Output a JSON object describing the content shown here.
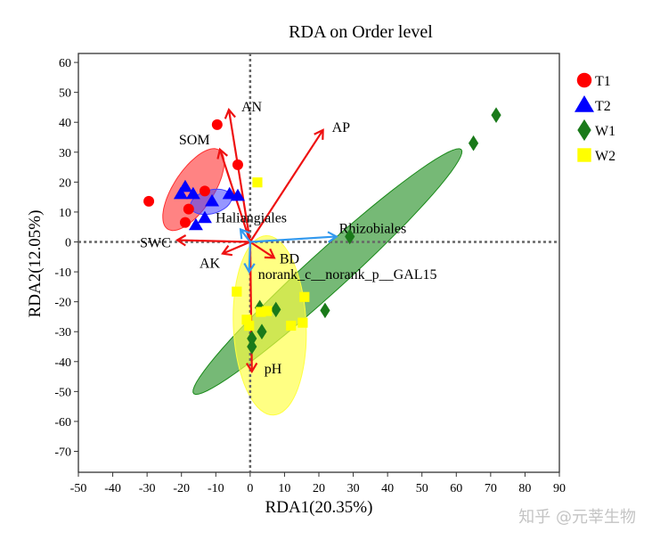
{
  "chart_data": {
    "type": "scatter",
    "title": "RDA on Order level",
    "xlabel": "RDA1(20.35%)",
    "ylabel": "RDA2(12.05%)",
    "xlim": [
      -50,
      90
    ],
    "ylim": [
      -77,
      63
    ],
    "xticks": [
      -50,
      -40,
      -30,
      -20,
      -10,
      0,
      10,
      20,
      30,
      40,
      50,
      60,
      70,
      80,
      90
    ],
    "yticks": [
      60,
      50,
      40,
      30,
      20,
      10,
      0,
      -10,
      -20,
      -30,
      -40,
      -50,
      -60,
      -70
    ],
    "grid": false,
    "legend_position": "right",
    "series": [
      {
        "name": "T1",
        "marker": "circle",
        "color": "#ff0000",
        "points": [
          [
            -9.6,
            39.2
          ],
          [
            -3.6,
            25.8
          ],
          [
            -29.5,
            13.6
          ],
          [
            -13.2,
            17
          ],
          [
            -17.9,
            11
          ],
          [
            -18.9,
            6.5
          ]
        ]
      },
      {
        "name": "T2",
        "marker": "triangle",
        "color": "#0000ff",
        "points": [
          [
            -18.9,
            18.4
          ],
          [
            -16.6,
            16
          ],
          [
            -20.2,
            16
          ],
          [
            -11.1,
            13.6
          ],
          [
            -13.2,
            8
          ],
          [
            -15.8,
            5.6
          ],
          [
            -6,
            16
          ],
          [
            -3.6,
            15.4
          ]
        ]
      },
      {
        "name": "W1",
        "marker": "diamond",
        "color": "#1a7a1a",
        "points": [
          [
            71.6,
            42.4
          ],
          [
            65,
            33
          ],
          [
            29,
            1.8
          ],
          [
            21.8,
            -22.9
          ],
          [
            7.5,
            -22.6
          ],
          [
            3.4,
            -30
          ],
          [
            0.5,
            -32.3
          ],
          [
            0.5,
            -35
          ],
          [
            2.8,
            -22
          ]
        ]
      },
      {
        "name": "W2",
        "marker": "square",
        "color": "#ffff00",
        "points": [
          [
            2.1,
            19.9
          ],
          [
            -3.9,
            -16.6
          ],
          [
            15.8,
            -18.4
          ],
          [
            3.1,
            -23.4
          ],
          [
            4.9,
            -23.1
          ],
          [
            -1,
            -26
          ],
          [
            11.9,
            -28
          ],
          [
            15.3,
            -27
          ],
          [
            -0.3,
            -28
          ]
        ]
      }
    ],
    "ellipses": [
      {
        "group": "W1",
        "color": "#1a8a1a",
        "opacity": 0.6,
        "center": [
          22.5,
          -9.9
        ],
        "a": 56.4,
        "b": 6.2,
        "angle_deg": 46.4
      },
      {
        "group": "T1",
        "color": "#ff3030",
        "opacity": 0.6,
        "center": [
          -16.5,
          17.5
        ],
        "a": 15.2,
        "b": 6,
        "angle_deg": 61.7
      },
      {
        "group": "T2",
        "color": "#4040ff",
        "opacity": 0.55,
        "center": [
          -11.4,
          13.4
        ],
        "a": 6.2,
        "b": 3.9,
        "angle_deg": 20
      },
      {
        "group": "W2",
        "color": "#ffff40",
        "opacity": 0.65,
        "center": [
          5.7,
          -27.9
        ],
        "a": 30,
        "b": 10.6,
        "angle_deg": 92
      }
    ],
    "env_arrows": {
      "color": "#ee1111",
      "items": [
        {
          "label": "AN",
          "x": -6.2,
          "y": 44.2
        },
        {
          "label": "SOM",
          "x": -8.8,
          "y": 30.9
        },
        {
          "label": "AP",
          "x": 21.2,
          "y": 37.4
        },
        {
          "label": "SWC",
          "x": -21.2,
          "y": 0.6
        },
        {
          "label": "AK",
          "x": -8,
          "y": -3.9
        },
        {
          "label": "BD",
          "x": 7,
          "y": -5.3
        },
        {
          "label": "pH",
          "x": 0.5,
          "y": -43.3
        }
      ]
    },
    "taxa_arrows": {
      "color": "#3399ee",
      "items": [
        {
          "label": "Rhizobiales",
          "x": 25.1,
          "y": 1.8
        },
        {
          "label": "Haliangiales",
          "x": -2.8,
          "y": 4.2
        },
        {
          "label": "norank_c__norank_p__GAL15",
          "x": -0.3,
          "y": -10
        }
      ]
    }
  },
  "watermark": "知乎 @元莘生物"
}
